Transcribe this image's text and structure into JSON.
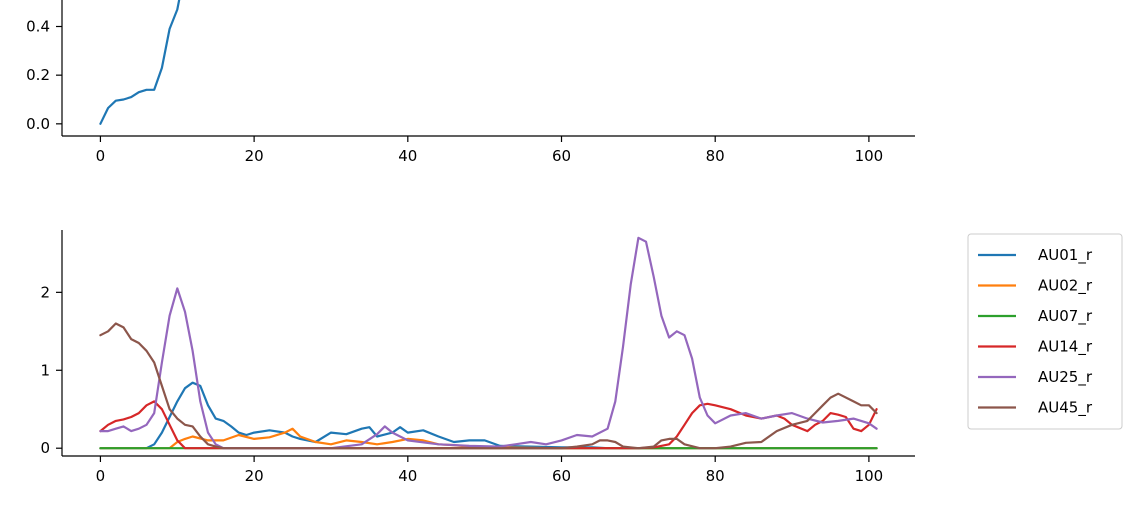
{
  "chart_data": [
    {
      "type": "line",
      "title": "",
      "xlabel": "",
      "ylabel": "",
      "xlim": [
        -5,
        106
      ],
      "ylim": [
        -0.05,
        0.55
      ],
      "xticks": [
        0,
        20,
        40,
        60,
        80,
        100
      ],
      "yticks": [
        0.0,
        0.2,
        0.4
      ],
      "ytick_labels": [
        "0.0",
        "0.2",
        "0.4"
      ],
      "grid": false,
      "series": [
        {
          "color": "#1f77b4",
          "x": [
            0,
            1,
            2,
            3,
            4,
            5,
            6,
            7,
            8,
            9,
            10,
            10.5
          ],
          "y": [
            0.0,
            0.065,
            0.095,
            0.1,
            0.11,
            0.13,
            0.14,
            0.14,
            0.23,
            0.39,
            0.47,
            0.55
          ]
        }
      ]
    },
    {
      "type": "line",
      "title": "",
      "xlabel": "",
      "ylabel": "",
      "xlim": [
        -5,
        106
      ],
      "ylim": [
        -0.1,
        2.8
      ],
      "xticks": [
        0,
        20,
        40,
        60,
        80,
        100
      ],
      "yticks": [
        0,
        1,
        2
      ],
      "ytick_labels": [
        "0",
        "1",
        "2"
      ],
      "grid": false,
      "legend": "outside-right",
      "series": [
        {
          "name": "AU01_r",
          "color": "#1f77b4",
          "x": [
            0,
            6,
            7,
            8,
            9,
            10,
            11,
            12,
            13,
            14,
            15,
            16,
            17,
            18,
            19,
            20,
            22,
            24,
            25,
            26,
            28,
            30,
            32,
            34,
            35,
            36,
            38,
            39,
            40,
            42,
            44,
            46,
            48,
            50,
            52,
            56,
            60,
            64,
            66,
            68,
            70,
            80,
            90,
            101
          ],
          "y": [
            0,
            0,
            0.05,
            0.2,
            0.4,
            0.6,
            0.77,
            0.84,
            0.8,
            0.55,
            0.38,
            0.35,
            0.28,
            0.2,
            0.17,
            0.2,
            0.23,
            0.2,
            0.15,
            0.12,
            0.08,
            0.2,
            0.18,
            0.25,
            0.27,
            0.15,
            0.2,
            0.27,
            0.2,
            0.23,
            0.15,
            0.08,
            0.1,
            0.1,
            0.03,
            0.02,
            0.01,
            0.01,
            0,
            0,
            0,
            0,
            0,
            0
          ]
        },
        {
          "name": "AU02_r",
          "color": "#ff7f0e",
          "x": [
            0,
            9,
            10,
            11,
            12,
            14,
            16,
            18,
            20,
            22,
            24,
            25,
            26,
            28,
            30,
            32,
            34,
            36,
            38,
            40,
            42,
            44,
            46,
            48,
            50,
            60,
            80,
            101
          ],
          "y": [
            0,
            0,
            0.08,
            0.12,
            0.15,
            0.1,
            0.1,
            0.17,
            0.12,
            0.14,
            0.2,
            0.25,
            0.15,
            0.08,
            0.05,
            0.1,
            0.08,
            0.05,
            0.08,
            0.12,
            0.1,
            0.05,
            0.04,
            0.02,
            0.01,
            0,
            0,
            0
          ]
        },
        {
          "name": "AU07_r",
          "color": "#2ca02c",
          "x": [
            0,
            101
          ],
          "y": [
            0,
            0
          ]
        },
        {
          "name": "AU14_r",
          "color": "#d62728",
          "x": [
            0,
            1,
            2,
            3,
            4,
            5,
            6,
            7,
            8,
            9,
            10,
            11,
            20,
            30,
            40,
            50,
            60,
            70,
            72,
            74,
            75,
            76,
            77,
            78,
            79,
            80,
            82,
            84,
            86,
            88,
            89,
            90,
            92,
            93,
            94,
            95,
            96,
            97,
            98,
            99,
            100,
            101
          ],
          "y": [
            0.22,
            0.3,
            0.35,
            0.37,
            0.4,
            0.45,
            0.55,
            0.6,
            0.5,
            0.3,
            0.1,
            0,
            0,
            0,
            0,
            0,
            0,
            0,
            0.01,
            0.05,
            0.15,
            0.3,
            0.45,
            0.55,
            0.57,
            0.55,
            0.5,
            0.42,
            0.38,
            0.42,
            0.38,
            0.3,
            0.22,
            0.3,
            0.35,
            0.45,
            0.43,
            0.4,
            0.25,
            0.22,
            0.3,
            0.5
          ]
        },
        {
          "name": "AU25_r",
          "color": "#9467bd",
          "x": [
            0,
            1,
            2,
            3,
            4,
            5,
            6,
            7,
            8,
            9,
            10,
            11,
            12,
            13,
            14,
            15,
            16,
            18,
            20,
            30,
            34,
            36,
            37,
            38,
            40,
            44,
            48,
            52,
            54,
            56,
            58,
            60,
            62,
            64,
            66,
            67,
            68,
            69,
            70,
            71,
            72,
            73,
            74,
            75,
            76,
            77,
            78,
            79,
            80,
            82,
            84,
            86,
            88,
            90,
            92,
            94,
            96,
            98,
            100,
            101
          ],
          "y": [
            0.22,
            0.22,
            0.25,
            0.28,
            0.22,
            0.25,
            0.3,
            0.45,
            1.1,
            1.7,
            2.05,
            1.75,
            1.25,
            0.6,
            0.2,
            0.05,
            0,
            0,
            0,
            0,
            0.05,
            0.18,
            0.28,
            0.2,
            0.1,
            0.05,
            0.03,
            0.02,
            0.05,
            0.08,
            0.05,
            0.1,
            0.17,
            0.15,
            0.25,
            0.6,
            1.3,
            2.1,
            2.7,
            2.65,
            2.2,
            1.7,
            1.42,
            1.5,
            1.45,
            1.15,
            0.65,
            0.42,
            0.32,
            0.42,
            0.45,
            0.38,
            0.42,
            0.45,
            0.38,
            0.33,
            0.35,
            0.38,
            0.32,
            0.25
          ]
        },
        {
          "name": "AU45_r",
          "color": "#8c564b",
          "x": [
            0,
            1,
            2,
            3,
            4,
            5,
            6,
            7,
            8,
            9,
            10,
            11,
            12,
            13,
            14,
            15,
            16,
            20,
            30,
            40,
            50,
            60,
            62,
            64,
            65,
            66,
            67,
            68,
            70,
            72,
            73,
            74,
            75,
            76,
            78,
            80,
            82,
            84,
            86,
            88,
            90,
            92,
            93,
            94,
            95,
            96,
            98,
            99,
            100,
            101
          ],
          "y": [
            1.45,
            1.5,
            1.6,
            1.55,
            1.4,
            1.35,
            1.25,
            1.1,
            0.8,
            0.5,
            0.38,
            0.3,
            0.28,
            0.15,
            0.05,
            0.02,
            0,
            0,
            0,
            0,
            0,
            0,
            0.02,
            0.05,
            0.1,
            0.1,
            0.08,
            0.02,
            0,
            0.02,
            0.1,
            0.12,
            0.12,
            0.05,
            0,
            0,
            0.02,
            0.07,
            0.08,
            0.22,
            0.3,
            0.35,
            0.45,
            0.55,
            0.65,
            0.7,
            0.6,
            0.55,
            0.55,
            0.45
          ]
        }
      ]
    }
  ]
}
